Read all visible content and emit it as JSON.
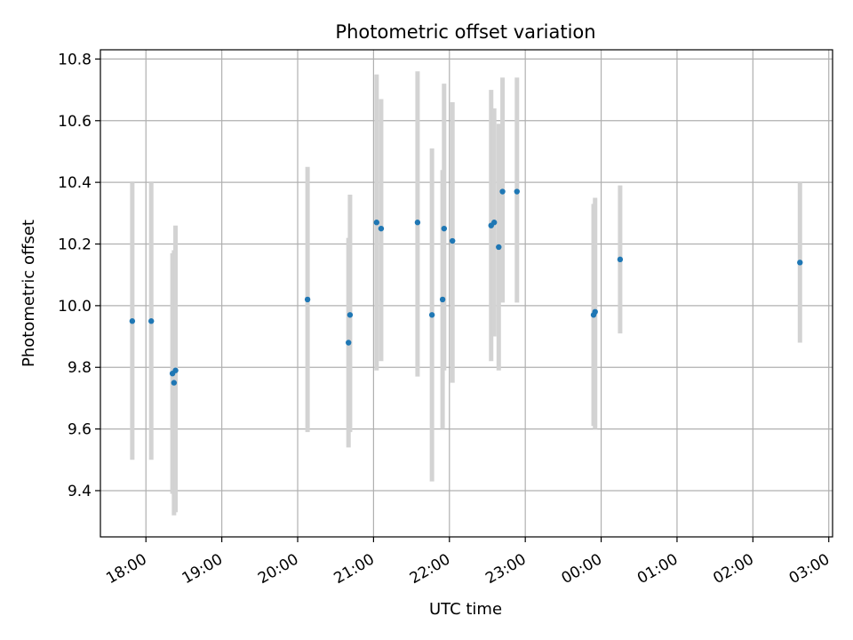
{
  "chart_data": {
    "type": "scatter",
    "title": "Photometric offset variation",
    "xlabel": "UTC time",
    "ylabel": "Photometric offset",
    "x_unit": "hours since 17:00 UTC",
    "xlim": [
      0.4,
      10.05
    ],
    "ylim": [
      9.25,
      10.83
    ],
    "grid": true,
    "xticks": [
      {
        "value": 1,
        "label": "18:00"
      },
      {
        "value": 2,
        "label": "19:00"
      },
      {
        "value": 3,
        "label": "20:00"
      },
      {
        "value": 4,
        "label": "21:00"
      },
      {
        "value": 5,
        "label": "22:00"
      },
      {
        "value": 6,
        "label": "23:00"
      },
      {
        "value": 7,
        "label": "00:00"
      },
      {
        "value": 8,
        "label": "01:00"
      },
      {
        "value": 9,
        "label": "02:00"
      },
      {
        "value": 10,
        "label": "03:00"
      }
    ],
    "yticks": [
      {
        "value": 9.4,
        "label": "9.4"
      },
      {
        "value": 9.6,
        "label": "9.6"
      },
      {
        "value": 9.8,
        "label": "9.8"
      },
      {
        "value": 10.0,
        "label": "10.0"
      },
      {
        "value": 10.2,
        "label": "10.2"
      },
      {
        "value": 10.4,
        "label": "10.4"
      },
      {
        "value": 10.6,
        "label": "10.6"
      },
      {
        "value": 10.8,
        "label": "10.8"
      }
    ],
    "colors": {
      "point": "#1f77b4",
      "errorbar": "#d3d3d3",
      "grid": "#b0b0b0",
      "axis": "#000000"
    },
    "points": [
      {
        "x": 0.82,
        "y": 9.95,
        "low": 9.5,
        "high": 10.4
      },
      {
        "x": 1.07,
        "y": 9.95,
        "low": 9.5,
        "high": 10.4
      },
      {
        "x": 1.35,
        "y": 9.78,
        "low": 9.39,
        "high": 10.17
      },
      {
        "x": 1.37,
        "y": 9.75,
        "low": 9.32,
        "high": 10.18
      },
      {
        "x": 1.39,
        "y": 9.79,
        "low": 9.33,
        "high": 10.26
      },
      {
        "x": 3.13,
        "y": 10.02,
        "low": 9.59,
        "high": 10.45
      },
      {
        "x": 3.67,
        "y": 9.88,
        "low": 9.54,
        "high": 10.22
      },
      {
        "x": 3.69,
        "y": 9.97,
        "low": 9.59,
        "high": 10.36
      },
      {
        "x": 4.04,
        "y": 10.27,
        "low": 9.79,
        "high": 10.75
      },
      {
        "x": 4.1,
        "y": 10.25,
        "low": 9.82,
        "high": 10.67
      },
      {
        "x": 4.58,
        "y": 10.27,
        "low": 9.77,
        "high": 10.76
      },
      {
        "x": 4.77,
        "y": 9.97,
        "low": 9.43,
        "high": 10.51
      },
      {
        "x": 4.91,
        "y": 10.02,
        "low": 9.6,
        "high": 10.44
      },
      {
        "x": 4.93,
        "y": 10.25,
        "low": 9.79,
        "high": 10.72
      },
      {
        "x": 5.04,
        "y": 10.21,
        "low": 9.75,
        "high": 10.66
      },
      {
        "x": 5.55,
        "y": 10.26,
        "low": 9.82,
        "high": 10.7
      },
      {
        "x": 5.59,
        "y": 10.27,
        "low": 9.9,
        "high": 10.64
      },
      {
        "x": 5.65,
        "y": 10.19,
        "low": 9.79,
        "high": 10.59
      },
      {
        "x": 5.7,
        "y": 10.37,
        "low": 10.01,
        "high": 10.74
      },
      {
        "x": 5.89,
        "y": 10.37,
        "low": 10.01,
        "high": 10.74
      },
      {
        "x": 6.9,
        "y": 9.97,
        "low": 9.61,
        "high": 10.33
      },
      {
        "x": 6.92,
        "y": 9.98,
        "low": 9.6,
        "high": 10.35
      },
      {
        "x": 7.25,
        "y": 10.15,
        "low": 9.91,
        "high": 10.39
      },
      {
        "x": 9.62,
        "y": 10.14,
        "low": 9.88,
        "high": 10.4
      }
    ]
  }
}
